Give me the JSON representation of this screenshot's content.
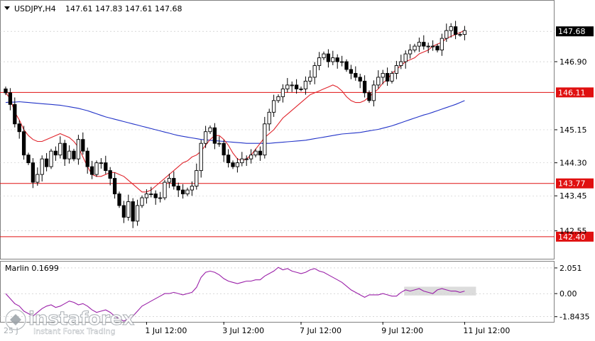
{
  "header": {
    "symbol": "USDJPY,H4",
    "ohlc": "147.61 147.83 147.61 147.68"
  },
  "colors": {
    "background": "#ffffff",
    "grid": "#c0c0c0",
    "candle": "#000000",
    "ma_fast": "#e0242b",
    "ma_slow": "#2233c8",
    "level": "#e01010",
    "level_label_bg": "#e01010",
    "osc": "#9a1fa8",
    "osc_box": "#d3d3d3",
    "axis_text": "#000000"
  },
  "chart_data": [
    {
      "type": "candlestick",
      "title": "USDJPY,H4",
      "ylim": [
        141.85,
        148.45
      ],
      "yticks": [
        "142.55",
        "143.45",
        "144.30",
        "145.15",
        "146.90"
      ],
      "current_price": "147.68",
      "levels": [
        {
          "label": "146.11",
          "value": 146.11
        },
        {
          "label": "143.77",
          "value": 143.77
        },
        {
          "label": "142.40",
          "value": 142.4
        }
      ],
      "x_labels": [
        "1 Jul 12:00",
        "3 Jul 12:00",
        "7 Jul 12:00",
        "9 Jul 12:00",
        "11 Jul 12:00"
      ],
      "x_label_candle_index": [
        31,
        48,
        65,
        83,
        101
      ],
      "close": [
        146.1,
        145.8,
        145.3,
        145.1,
        144.5,
        144.3,
        143.8,
        144.0,
        144.4,
        144.2,
        144.6,
        144.5,
        144.8,
        144.4,
        144.6,
        144.4,
        144.9,
        144.6,
        144.2,
        144.0,
        144.3,
        144.3,
        144.1,
        143.9,
        143.5,
        143.2,
        142.9,
        143.3,
        142.8,
        143.2,
        143.4,
        143.5,
        143.5,
        143.4,
        143.4,
        143.8,
        143.9,
        143.7,
        143.6,
        143.5,
        143.6,
        143.7,
        144.1,
        144.8,
        145.1,
        145.2,
        144.8,
        144.8,
        144.5,
        144.3,
        144.2,
        144.3,
        144.4,
        144.4,
        144.5,
        144.6,
        144.5,
        145.3,
        145.6,
        145.9,
        146.0,
        146.2,
        146.3,
        146.3,
        146.2,
        146.2,
        146.4,
        146.5,
        146.8,
        147.0,
        147.1,
        146.9,
        147.0,
        146.9,
        146.9,
        146.7,
        146.6,
        146.5,
        146.4,
        146.1,
        145.9,
        146.3,
        146.5,
        146.6,
        146.4,
        146.6,
        146.8,
        146.9,
        147.1,
        147.2,
        147.3,
        147.4,
        147.3,
        147.3,
        147.3,
        147.2,
        147.5,
        147.7,
        147.8,
        147.6,
        147.6,
        147.7
      ],
      "ma_fast": [
        146.1,
        145.95,
        145.6,
        145.4,
        145.15,
        145.0,
        144.9,
        144.85,
        144.85,
        144.9,
        144.95,
        145.0,
        145.05,
        145.0,
        144.95,
        144.85,
        144.7,
        144.45,
        144.2,
        144.0,
        143.95,
        143.95,
        144.0,
        144.05,
        144.05,
        144.0,
        143.95,
        143.85,
        143.75,
        143.65,
        143.55,
        143.55,
        143.6,
        143.7,
        143.8,
        143.9,
        144.0,
        144.1,
        144.2,
        144.3,
        144.35,
        144.45,
        144.5,
        144.6,
        144.75,
        144.9,
        145.0,
        145.0,
        144.9,
        144.75,
        144.55,
        144.4,
        144.35,
        144.4,
        144.5,
        144.65,
        144.8,
        144.95,
        145.05,
        145.15,
        145.3,
        145.45,
        145.55,
        145.65,
        145.75,
        145.85,
        145.95,
        146.05,
        146.1,
        146.15,
        146.2,
        146.25,
        146.3,
        146.25,
        146.15,
        146.0,
        145.9,
        145.85,
        145.85,
        145.9,
        146.0,
        146.1,
        146.2,
        146.35,
        146.45,
        146.6,
        146.7,
        146.8,
        146.9,
        146.95,
        147.0,
        147.1,
        147.15,
        147.2,
        147.3,
        147.35,
        147.4,
        147.5,
        147.55,
        147.6,
        147.65,
        147.7
      ],
      "ma_slow": [
        145.85,
        145.86,
        145.86,
        145.87,
        145.86,
        145.85,
        145.84,
        145.83,
        145.82,
        145.81,
        145.8,
        145.79,
        145.78,
        145.76,
        145.74,
        145.72,
        145.7,
        145.67,
        145.64,
        145.6,
        145.56,
        145.52,
        145.48,
        145.45,
        145.42,
        145.39,
        145.36,
        145.33,
        145.3,
        145.27,
        145.24,
        145.21,
        145.18,
        145.15,
        145.12,
        145.09,
        145.06,
        145.03,
        145.0,
        144.98,
        144.96,
        144.94,
        144.92,
        144.9,
        144.89,
        144.88,
        144.87,
        144.86,
        144.85,
        144.84,
        144.83,
        144.82,
        144.81,
        144.8,
        144.8,
        144.8,
        144.8,
        144.8,
        144.8,
        144.81,
        144.82,
        144.83,
        144.84,
        144.85,
        144.86,
        144.87,
        144.88,
        144.9,
        144.92,
        144.94,
        144.96,
        144.98,
        145.0,
        145.02,
        145.04,
        145.05,
        145.06,
        145.07,
        145.08,
        145.1,
        145.12,
        145.14,
        145.16,
        145.19,
        145.22,
        145.25,
        145.29,
        145.33,
        145.37,
        145.41,
        145.45,
        145.49,
        145.53,
        145.56,
        145.6,
        145.64,
        145.68,
        145.72,
        145.76,
        145.8,
        145.85,
        145.9
      ]
    },
    {
      "type": "line",
      "title": "Marlin 0.1699",
      "ylim": [
        -2.2,
        2.5
      ],
      "yticks": [
        "2.051",
        "0.00",
        "-1.8435"
      ],
      "values": [
        0.0,
        -0.4,
        -0.8,
        -1.0,
        -1.4,
        -1.6,
        -1.8,
        -1.5,
        -1.2,
        -1.0,
        -0.9,
        -1.1,
        -1.0,
        -0.8,
        -0.6,
        -0.7,
        -0.9,
        -0.8,
        -1.0,
        -1.3,
        -1.5,
        -1.4,
        -1.3,
        -1.5,
        -1.8,
        -2.0,
        -2.2,
        -2.0,
        -1.8,
        -1.4,
        -1.0,
        -0.8,
        -0.6,
        -0.4,
        -0.2,
        0.0,
        0.0,
        0.1,
        0.0,
        -0.1,
        0.0,
        0.1,
        0.5,
        1.3,
        1.7,
        1.8,
        1.7,
        1.5,
        1.2,
        1.0,
        0.9,
        0.8,
        0.9,
        1.0,
        1.0,
        1.1,
        1.1,
        1.4,
        1.6,
        1.8,
        2.1,
        1.9,
        2.0,
        1.8,
        1.7,
        1.6,
        1.7,
        1.9,
        2.0,
        1.8,
        1.7,
        1.5,
        1.3,
        1.1,
        0.9,
        0.6,
        0.3,
        0.1,
        -0.1,
        -0.3,
        -0.1,
        -0.1,
        -0.1,
        0.0,
        -0.1,
        -0.2,
        -0.2,
        0.1,
        0.3,
        0.2,
        0.3,
        0.4,
        0.2,
        0.1,
        0.0,
        0.3,
        0.4,
        0.3,
        0.2,
        0.2,
        0.1,
        0.2
      ],
      "highlight_range_from_index": 88
    }
  ],
  "watermark": {
    "brand": "instaforex",
    "tagline": "Instant Forex Trading",
    "partial_date": "25 J"
  }
}
